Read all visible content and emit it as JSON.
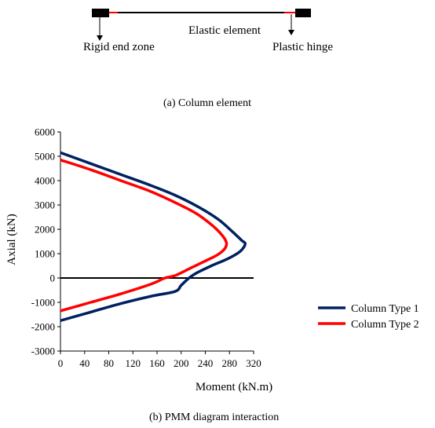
{
  "part_a": {
    "caption": "(a) Column element",
    "labels": {
      "rigid_end_zone": "Rigid end zone",
      "elastic_element": "Elastic element",
      "plastic_hinge": "Plastic hinge"
    },
    "colors": {
      "element": "#000000",
      "rigid_zone": "#000000",
      "hinge": "#ff0000"
    }
  },
  "part_b": {
    "caption": "(b) PMM diagram interaction"
  },
  "chart_data": {
    "type": "line",
    "xlabel": "Moment (kN.m)",
    "ylabel": "Axial (kN)",
    "xlim": [
      0,
      320
    ],
    "ylim": [
      -3000,
      6000
    ],
    "xticks": [
      0,
      40,
      80,
      120,
      160,
      200,
      240,
      280,
      320
    ],
    "yticks": [
      -3000,
      -2000,
      -1000,
      0,
      1000,
      2000,
      3000,
      4000,
      5000,
      6000
    ],
    "grid": false,
    "legend": "right",
    "series": [
      {
        "name": "Column Type 1",
        "color": "#002060",
        "x": [
          0,
          50,
          100,
          150,
          190,
          230,
          262,
          285,
          300,
          306,
          298,
          278,
          250,
          225,
          213,
          200,
          190,
          150,
          100,
          50,
          0
        ],
        "y": [
          5150,
          4700,
          4250,
          3800,
          3400,
          2900,
          2400,
          1900,
          1550,
          1400,
          1100,
          800,
          500,
          200,
          0,
          -300,
          -550,
          -750,
          -1050,
          -1400,
          -1750
        ]
      },
      {
        "name": "Column Type 2",
        "color": "#ff0000",
        "x": [
          0,
          50,
          100,
          150,
          190,
          225,
          252,
          268,
          275,
          272,
          260,
          240,
          215,
          190,
          173,
          150,
          100,
          50,
          0
        ],
        "y": [
          4850,
          4450,
          4000,
          3550,
          3100,
          2650,
          2150,
          1750,
          1450,
          1200,
          950,
          700,
          400,
          100,
          0,
          -250,
          -650,
          -1000,
          -1350
        ]
      }
    ]
  }
}
